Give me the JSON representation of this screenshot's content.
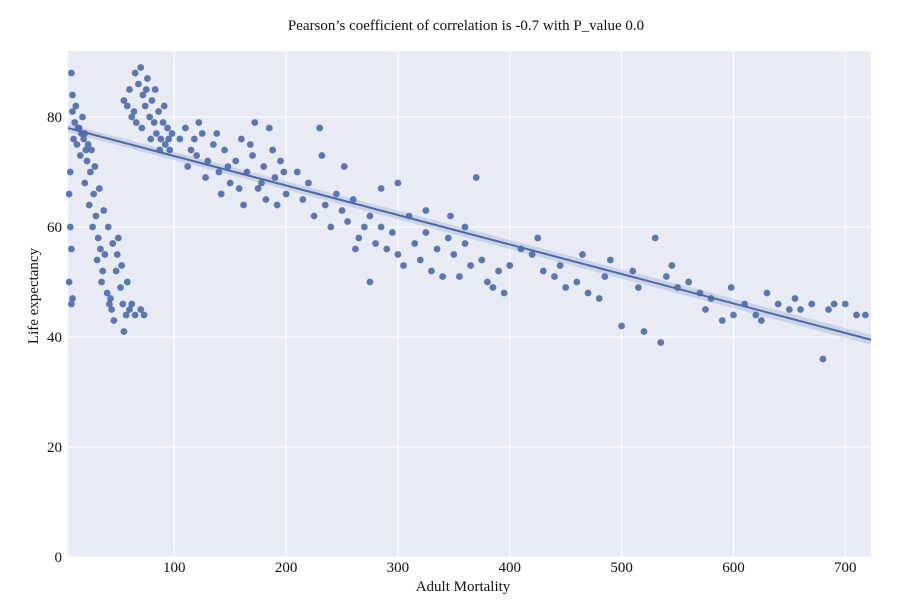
{
  "chart_data": {
    "type": "scatter",
    "title": "Pearson’s coefficient of correlation is -0.7 with P_value 0.0",
    "xlabel": "Adult Mortality",
    "ylabel": "Life expectancy",
    "xlim": [
      5,
      723
    ],
    "ylim": [
      0,
      92
    ],
    "x_ticks": [
      "100",
      "200",
      "300",
      "400",
      "500",
      "600",
      "700"
    ],
    "y_ticks": [
      "0",
      "20",
      "40",
      "60",
      "80"
    ],
    "grid": true,
    "legend": "none",
    "colors": {
      "background": "#e9ebf4",
      "grid": "#ffffff",
      "points": "#4a6aaa",
      "line": "#4a6aaa"
    },
    "regression": {
      "x": [
        5,
        723
      ],
      "y": [
        78,
        39.5
      ]
    },
    "series": [
      {
        "points": [
          [
            8,
            88
          ],
          [
            9,
            84
          ],
          [
            9,
            81
          ],
          [
            10,
            76
          ],
          [
            7,
            70
          ],
          [
            6,
            66
          ],
          [
            7,
            60
          ],
          [
            8,
            56
          ],
          [
            6,
            50
          ],
          [
            9,
            47
          ],
          [
            8,
            46
          ],
          [
            11,
            79
          ],
          [
            12,
            82
          ],
          [
            13,
            75
          ],
          [
            15,
            78
          ],
          [
            18,
            80
          ],
          [
            20,
            77
          ],
          [
            16,
            73
          ],
          [
            22,
            72
          ],
          [
            25,
            70
          ],
          [
            20,
            68
          ],
          [
            28,
            66
          ],
          [
            24,
            64
          ],
          [
            30,
            62
          ],
          [
            27,
            60
          ],
          [
            32,
            58
          ],
          [
            34,
            56
          ],
          [
            31,
            54
          ],
          [
            36,
            52
          ],
          [
            38,
            55
          ],
          [
            35,
            50
          ],
          [
            40,
            48
          ],
          [
            42,
            46
          ],
          [
            44,
            45
          ],
          [
            46,
            43
          ],
          [
            43,
            47
          ],
          [
            48,
            52
          ],
          [
            50,
            58
          ],
          [
            52,
            49
          ],
          [
            54,
            46
          ],
          [
            57,
            44
          ],
          [
            55,
            41
          ],
          [
            60,
            45
          ],
          [
            62,
            46
          ],
          [
            65,
            44
          ],
          [
            70,
            45
          ],
          [
            73,
            44
          ],
          [
            26,
            74
          ],
          [
            29,
            71
          ],
          [
            33,
            67
          ],
          [
            37,
            63
          ],
          [
            41,
            60
          ],
          [
            45,
            57
          ],
          [
            49,
            55
          ],
          [
            53,
            53
          ],
          [
            58,
            50
          ],
          [
            23,
            75
          ],
          [
            19,
            76
          ],
          [
            14,
            78
          ],
          [
            17,
            77
          ],
          [
            21,
            74
          ],
          [
            55,
            83
          ],
          [
            58,
            82
          ],
          [
            60,
            85
          ],
          [
            62,
            80
          ],
          [
            65,
            88
          ],
          [
            68,
            86
          ],
          [
            70,
            89
          ],
          [
            72,
            84
          ],
          [
            74,
            82
          ],
          [
            76,
            87
          ],
          [
            78,
            80
          ],
          [
            80,
            83
          ],
          [
            82,
            79
          ],
          [
            84,
            77
          ],
          [
            86,
            81
          ],
          [
            88,
            76
          ],
          [
            90,
            79
          ],
          [
            92,
            75
          ],
          [
            94,
            78
          ],
          [
            96,
            74
          ],
          [
            98,
            77
          ],
          [
            64,
            81
          ],
          [
            66,
            79
          ],
          [
            71,
            78
          ],
          [
            75,
            85
          ],
          [
            79,
            76
          ],
          [
            83,
            85
          ],
          [
            87,
            74
          ],
          [
            91,
            82
          ],
          [
            95,
            76
          ],
          [
            105,
            76
          ],
          [
            110,
            78
          ],
          [
            115,
            74
          ],
          [
            120,
            73
          ],
          [
            125,
            77
          ],
          [
            130,
            72
          ],
          [
            135,
            75
          ],
          [
            140,
            70
          ],
          [
            145,
            74
          ],
          [
            150,
            68
          ],
          [
            155,
            72
          ],
          [
            160,
            76
          ],
          [
            165,
            70
          ],
          [
            170,
            73
          ],
          [
            175,
            67
          ],
          [
            180,
            71
          ],
          [
            185,
            78
          ],
          [
            190,
            69
          ],
          [
            195,
            72
          ],
          [
            200,
            66
          ],
          [
            112,
            71
          ],
          [
            118,
            76
          ],
          [
            128,
            69
          ],
          [
            138,
            77
          ],
          [
            148,
            71
          ],
          [
            158,
            67
          ],
          [
            168,
            75
          ],
          [
            178,
            68
          ],
          [
            188,
            74
          ],
          [
            198,
            70
          ],
          [
            142,
            66
          ],
          [
            162,
            64
          ],
          [
            182,
            65
          ],
          [
            192,
            64
          ],
          [
            172,
            79
          ],
          [
            122,
            79
          ],
          [
            210,
            70
          ],
          [
            215,
            65
          ],
          [
            220,
            68
          ],
          [
            225,
            62
          ],
          [
            230,
            78
          ],
          [
            235,
            64
          ],
          [
            240,
            60
          ],
          [
            245,
            66
          ],
          [
            250,
            63
          ],
          [
            255,
            61
          ],
          [
            260,
            65
          ],
          [
            265,
            58
          ],
          [
            270,
            60
          ],
          [
            275,
            62
          ],
          [
            280,
            57
          ],
          [
            285,
            60
          ],
          [
            290,
            56
          ],
          [
            295,
            59
          ],
          [
            300,
            55
          ],
          [
            305,
            53
          ],
          [
            310,
            62
          ],
          [
            315,
            57
          ],
          [
            320,
            54
          ],
          [
            325,
            59
          ],
          [
            330,
            52
          ],
          [
            335,
            56
          ],
          [
            340,
            51
          ],
          [
            345,
            58
          ],
          [
            350,
            55
          ],
          [
            355,
            51
          ],
          [
            360,
            57
          ],
          [
            365,
            53
          ],
          [
            370,
            69
          ],
          [
            375,
            54
          ],
          [
            380,
            50
          ],
          [
            385,
            49
          ],
          [
            390,
            52
          ],
          [
            395,
            48
          ],
          [
            400,
            53
          ],
          [
            275,
            50
          ],
          [
            285,
            67
          ],
          [
            300,
            68
          ],
          [
            325,
            63
          ],
          [
            347,
            62
          ],
          [
            360,
            60
          ],
          [
            232,
            73
          ],
          [
            252,
            71
          ],
          [
            262,
            56
          ],
          [
            410,
            56
          ],
          [
            420,
            55
          ],
          [
            430,
            52
          ],
          [
            440,
            51
          ],
          [
            450,
            49
          ],
          [
            460,
            50
          ],
          [
            470,
            48
          ],
          [
            480,
            47
          ],
          [
            490,
            54
          ],
          [
            500,
            42
          ],
          [
            510,
            52
          ],
          [
            520,
            41
          ],
          [
            530,
            58
          ],
          [
            535,
            39
          ],
          [
            540,
            51
          ],
          [
            550,
            49
          ],
          [
            560,
            50
          ],
          [
            570,
            48
          ],
          [
            580,
            47
          ],
          [
            590,
            43
          ],
          [
            600,
            44
          ],
          [
            610,
            46
          ],
          [
            620,
            44
          ],
          [
            630,
            48
          ],
          [
            640,
            46
          ],
          [
            650,
            45
          ],
          [
            660,
            45
          ],
          [
            670,
            46
          ],
          [
            680,
            36
          ],
          [
            690,
            46
          ],
          [
            700,
            46
          ],
          [
            710,
            44
          ],
          [
            718,
            44
          ],
          [
            425,
            58
          ],
          [
            445,
            53
          ],
          [
            465,
            55
          ],
          [
            485,
            51
          ],
          [
            515,
            49
          ],
          [
            545,
            53
          ],
          [
            575,
            45
          ],
          [
            598,
            49
          ],
          [
            625,
            43
          ],
          [
            655,
            47
          ],
          [
            685,
            45
          ]
        ]
      }
    ]
  }
}
